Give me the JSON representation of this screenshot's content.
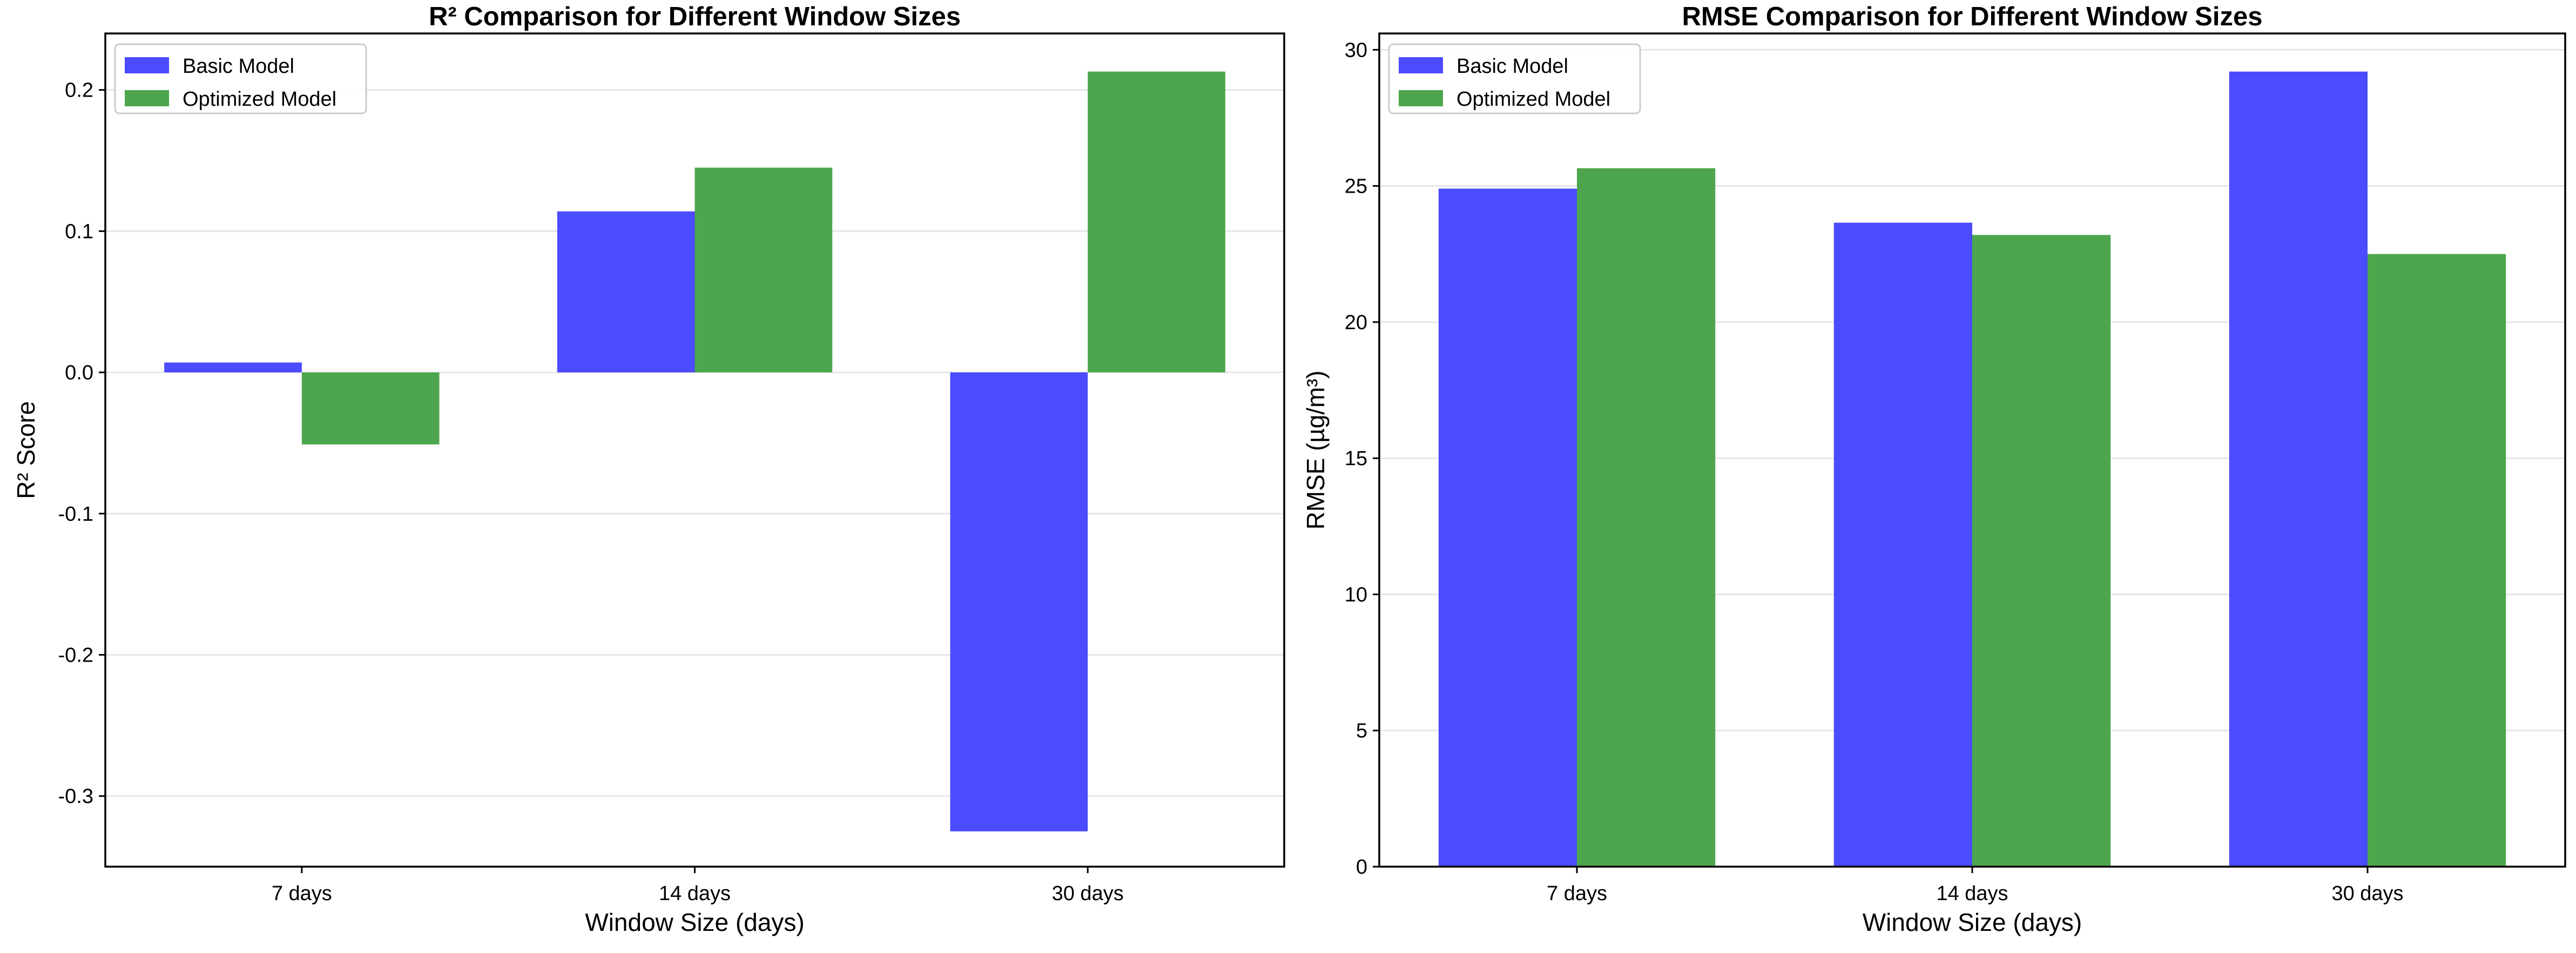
{
  "chart_data": [
    {
      "type": "bar",
      "title": "R² Comparison for Different Window Sizes",
      "xlabel": "Window Size (days)",
      "ylabel": "R² Score",
      "categories": [
        "7 days",
        "14 days",
        "30 days"
      ],
      "series": [
        {
          "name": "Basic Model",
          "values": [
            0.007,
            0.114,
            -0.325
          ]
        },
        {
          "name": "Optimized Model",
          "values": [
            -0.051,
            0.145,
            0.213
          ]
        }
      ],
      "ylim": [
        -0.35,
        0.24
      ],
      "yticks": [
        -0.3,
        -0.2,
        -0.1,
        0.0,
        0.1,
        0.2
      ],
      "ytick_labels": [
        "-0.3",
        "-0.2",
        "-0.1",
        "0.0",
        "0.1",
        "0.2"
      ],
      "grid": "y",
      "legend": "top-left"
    },
    {
      "type": "bar",
      "title": "RMSE Comparison for Different Window Sizes",
      "xlabel": "Window Size (days)",
      "ylabel": "RMSE (µg/m³)",
      "categories": [
        "7 days",
        "14 days",
        "30 days"
      ],
      "series": [
        {
          "name": "Basic Model",
          "values": [
            24.9,
            23.65,
            29.2
          ]
        },
        {
          "name": "Optimized Model",
          "values": [
            25.65,
            23.2,
            22.5
          ]
        }
      ],
      "ylim": [
        0,
        30.6
      ],
      "yticks": [
        0,
        5,
        10,
        15,
        20,
        25,
        30
      ],
      "ytick_labels": [
        "0",
        "5",
        "10",
        "15",
        "20",
        "25",
        "30"
      ],
      "grid": "y",
      "legend": "top-left"
    }
  ],
  "colors": {
    "Basic Model": "#4b4bff",
    "Optimized Model": "#4da64d",
    "grid": "#e6e6e6",
    "axes": "#000000"
  }
}
